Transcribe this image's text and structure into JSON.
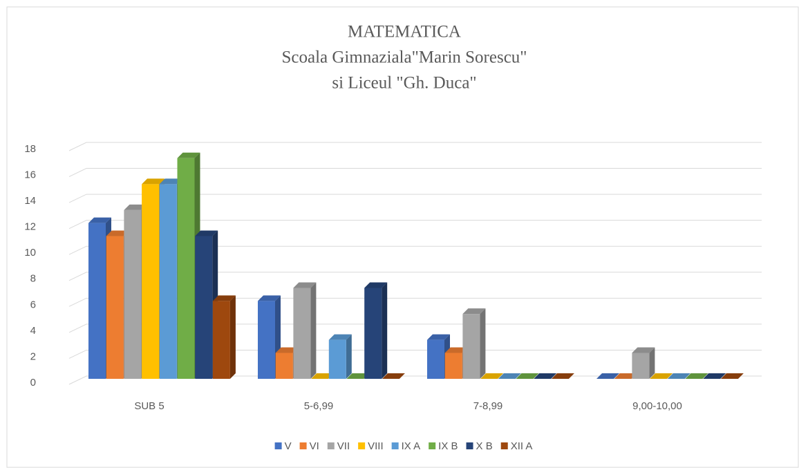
{
  "chart_data": {
    "type": "bar3d",
    "title": [
      "MATEMATICA",
      "Scoala Gimnaziala\"Marin  Sorescu\"",
      "si Liceul \"Gh. Duca\""
    ],
    "categories": [
      "SUB 5",
      "5-6,99",
      "7-8,99",
      "9,00-10,00"
    ],
    "series": [
      {
        "name": "V",
        "color": "#4472c4",
        "values": [
          12,
          6,
          3,
          0
        ]
      },
      {
        "name": "VI",
        "color": "#ed7d31",
        "values": [
          11,
          2,
          2,
          0
        ]
      },
      {
        "name": "VII",
        "color": "#a5a5a5",
        "values": [
          13,
          7,
          5,
          2
        ]
      },
      {
        "name": "VIII",
        "color": "#ffc000",
        "values": [
          15,
          0,
          0,
          0
        ]
      },
      {
        "name": "IX A",
        "color": "#5b9bd5",
        "values": [
          15,
          3,
          0,
          0
        ]
      },
      {
        "name": "IX B",
        "color": "#70ad47",
        "values": [
          17,
          0,
          0,
          0
        ]
      },
      {
        "name": "X B",
        "color": "#264478",
        "values": [
          11,
          7,
          0,
          0
        ]
      },
      {
        "name": "XII A",
        "color": "#9e480e",
        "values": [
          6,
          0,
          0,
          0
        ]
      }
    ],
    "ylim": [
      0,
      18
    ],
    "yticks": [
      0,
      2,
      4,
      6,
      8,
      10,
      12,
      14,
      16,
      18
    ],
    "grid": true,
    "legend": "bottom"
  }
}
